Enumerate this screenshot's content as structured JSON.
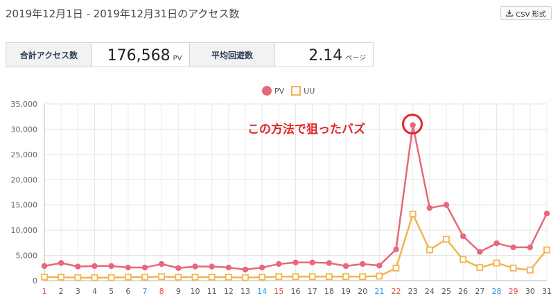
{
  "header": {
    "title": "2019年12月1日 - 2019年12月31日のアクセス数",
    "csv_label": "CSV 形式"
  },
  "summary": {
    "total_label": "合計アクセス数",
    "total_value": "176,568",
    "total_unit": "PV",
    "avg_label": "平均回遊数",
    "avg_value": "2.14",
    "avg_unit": "ページ"
  },
  "annotation": "この方法で狙ったバズ",
  "colors": {
    "pv": "#e8677a",
    "uu": "#f2b44c",
    "annotation": "#e0262a",
    "weekday": "#555555",
    "saturday": "#2f8fd8",
    "sunday": "#e0474c"
  },
  "chart_data": {
    "type": "line",
    "ylim": [
      0,
      35000
    ],
    "yticks": [
      "0",
      "5,000",
      "10,000",
      "15,000",
      "20,000",
      "25,000",
      "30,000",
      "35,000"
    ],
    "x": [
      "1",
      "2",
      "3",
      "4",
      "5",
      "6",
      "7",
      "8",
      "9",
      "10",
      "11",
      "12",
      "13",
      "14",
      "15",
      "16",
      "17",
      "18",
      "19",
      "20",
      "21",
      "22",
      "23",
      "24",
      "25",
      "26",
      "27",
      "28",
      "29",
      "30",
      "31"
    ],
    "x_day_type": [
      "sun",
      "wd",
      "wd",
      "wd",
      "wd",
      "wd",
      "sat",
      "sun",
      "wd",
      "wd",
      "wd",
      "wd",
      "wd",
      "sat",
      "sun",
      "wd",
      "wd",
      "wd",
      "wd",
      "wd",
      "sat",
      "sun",
      "wd",
      "wd",
      "wd",
      "wd",
      "wd",
      "sat",
      "sun",
      "wd",
      "wd"
    ],
    "grid": true,
    "legend_position": "top-center",
    "series": [
      {
        "name": "PV",
        "values": [
          2900,
          3500,
          2800,
          2900,
          2900,
          2600,
          2600,
          3300,
          2500,
          2800,
          2800,
          2600,
          2200,
          2600,
          3300,
          3600,
          3600,
          3500,
          2900,
          3300,
          3000,
          6200,
          30800,
          14400,
          15000,
          8800,
          5700,
          7400,
          6600,
          6600,
          13300
        ]
      },
      {
        "name": "UU",
        "values": [
          700,
          700,
          600,
          600,
          600,
          700,
          700,
          800,
          700,
          700,
          700,
          700,
          600,
          700,
          800,
          800,
          800,
          800,
          800,
          800,
          900,
          2500,
          13200,
          6100,
          8200,
          4200,
          2600,
          3500,
          2500,
          2100,
          6100
        ]
      }
    ]
  }
}
